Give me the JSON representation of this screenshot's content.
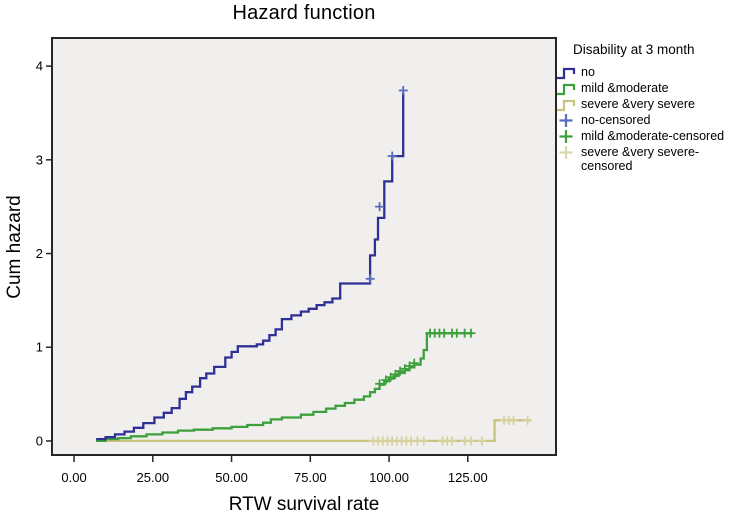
{
  "legend": {
    "title": "Disability at 3 month",
    "items": [
      {
        "label": "no",
        "symbol": "step",
        "color": "#2f3095"
      },
      {
        "label": "mild &moderate",
        "symbol": "step",
        "color": "#3da03d"
      },
      {
        "label": "severe &very severe",
        "symbol": "step",
        "color": "#c9c383"
      },
      {
        "label": "no-censored",
        "symbol": "plus",
        "color": "#5a6cc0"
      },
      {
        "label": "mild &moderate-censored",
        "symbol": "plus",
        "color": "#3da03d"
      },
      {
        "label": "severe &very severe-censored",
        "symbol": "plus",
        "color": "#dbd8a8"
      }
    ]
  },
  "colors": {
    "plot_bg": "#f0efee",
    "frame": "#262626",
    "tick": "#262626",
    "text": "#000000"
  },
  "chart_data": {
    "type": "line",
    "step": "after",
    "title": "Hazard function",
    "xlabel": "RTW survival rate",
    "ylabel": "Cum hazard",
    "xlim": [
      -7,
      153
    ],
    "ylim": [
      -0.15,
      4.3
    ],
    "grid": false,
    "legend_position": "right",
    "xticks": {
      "labels": [
        "0.00",
        "25.00",
        "50.00",
        "75.00",
        "100.00",
        "125.00"
      ],
      "values": [
        0,
        25,
        50,
        75,
        100,
        125
      ]
    },
    "yticks": {
      "labels": [
        "0",
        "1",
        "2",
        "3",
        "4"
      ],
      "values": [
        0,
        1,
        2,
        3,
        4
      ]
    },
    "series": [
      {
        "name": "no",
        "color": "#2f3095",
        "censored_color": "#5a6cc0",
        "points": [
          [
            7,
            0.02
          ],
          [
            10,
            0.04
          ],
          [
            13,
            0.07
          ],
          [
            16,
            0.1
          ],
          [
            19,
            0.14
          ],
          [
            22,
            0.19
          ],
          [
            25.5,
            0.25
          ],
          [
            28.5,
            0.3
          ],
          [
            31,
            0.35
          ],
          [
            33.5,
            0.45
          ],
          [
            35.5,
            0.52
          ],
          [
            37.5,
            0.58
          ],
          [
            40,
            0.67
          ],
          [
            42,
            0.72
          ],
          [
            44.5,
            0.79
          ],
          [
            48,
            0.89
          ],
          [
            50,
            0.95
          ],
          [
            52,
            1.01
          ],
          [
            58,
            1.03
          ],
          [
            60,
            1.07
          ],
          [
            62,
            1.13
          ],
          [
            64,
            1.19
          ],
          [
            66,
            1.3
          ],
          [
            69,
            1.34
          ],
          [
            72,
            1.38
          ],
          [
            74.5,
            1.41
          ],
          [
            77,
            1.45
          ],
          [
            79.5,
            1.48
          ],
          [
            82,
            1.52
          ],
          [
            84.5,
            1.68
          ],
          [
            94,
            1.98
          ],
          [
            95.5,
            2.15
          ],
          [
            96.5,
            2.38
          ],
          [
            98.5,
            2.77
          ],
          [
            101,
            3.04
          ],
          [
            104.5,
            3.04
          ],
          [
            104.5,
            3.72
          ]
        ],
        "censored": [
          [
            94,
            1.73
          ],
          [
            97,
            2.5
          ],
          [
            101,
            3.04
          ],
          [
            104.5,
            3.74
          ]
        ]
      },
      {
        "name": "mild &moderate",
        "color": "#3da03d",
        "censored_color": "#3da03d",
        "points": [
          [
            7,
            0.0
          ],
          [
            10,
            0.02
          ],
          [
            14,
            0.03
          ],
          [
            18,
            0.05
          ],
          [
            23,
            0.07
          ],
          [
            28,
            0.09
          ],
          [
            33,
            0.11
          ],
          [
            38,
            0.12
          ],
          [
            44,
            0.135
          ],
          [
            50,
            0.15
          ],
          [
            55,
            0.17
          ],
          [
            60,
            0.195
          ],
          [
            62.5,
            0.23
          ],
          [
            66,
            0.25
          ],
          [
            72,
            0.28
          ],
          [
            76,
            0.31
          ],
          [
            80,
            0.345
          ],
          [
            83,
            0.375
          ],
          [
            86,
            0.405
          ],
          [
            89,
            0.44
          ],
          [
            92,
            0.475
          ],
          [
            94,
            0.52
          ],
          [
            95.5,
            0.555
          ],
          [
            97,
            0.6
          ],
          [
            98.5,
            0.635
          ],
          [
            100,
            0.665
          ],
          [
            101.5,
            0.695
          ],
          [
            103,
            0.725
          ],
          [
            105,
            0.755
          ],
          [
            106.5,
            0.785
          ],
          [
            108,
            0.815
          ],
          [
            110,
            0.88
          ],
          [
            111,
            0.97
          ],
          [
            112,
            1.15
          ],
          [
            126.5,
            1.15
          ]
        ],
        "censored": [
          [
            97,
            0.61
          ],
          [
            99,
            0.65
          ],
          [
            100.5,
            0.68
          ],
          [
            102,
            0.71
          ],
          [
            103.5,
            0.745
          ],
          [
            105,
            0.77
          ],
          [
            106.5,
            0.8
          ],
          [
            108,
            0.83
          ],
          [
            113,
            1.15
          ],
          [
            114.5,
            1.15
          ],
          [
            116,
            1.15
          ],
          [
            117.5,
            1.15
          ],
          [
            120,
            1.15
          ],
          [
            121.5,
            1.15
          ],
          [
            124,
            1.15
          ],
          [
            126,
            1.15
          ]
        ]
      },
      {
        "name": "severe &very severe",
        "color": "#c9c383",
        "censored_color": "#d6d29c",
        "points": [
          [
            7,
            0.0
          ],
          [
            133.5,
            0.22
          ],
          [
            145,
            0.22
          ]
        ],
        "censored": [
          [
            95,
            0
          ],
          [
            96.5,
            0
          ],
          [
            98,
            0
          ],
          [
            99.5,
            0
          ],
          [
            101,
            0
          ],
          [
            102.5,
            0
          ],
          [
            104,
            0
          ],
          [
            105.5,
            0
          ],
          [
            107,
            0
          ],
          [
            109,
            0
          ],
          [
            111,
            0
          ],
          [
            117,
            0
          ],
          [
            118.5,
            0
          ],
          [
            120,
            0
          ],
          [
            124,
            0
          ],
          [
            126,
            0
          ],
          [
            129.5,
            0
          ],
          [
            136.5,
            0.22
          ],
          [
            138,
            0.22
          ],
          [
            139.5,
            0.22
          ],
          [
            144,
            0.22
          ]
        ]
      }
    ]
  }
}
